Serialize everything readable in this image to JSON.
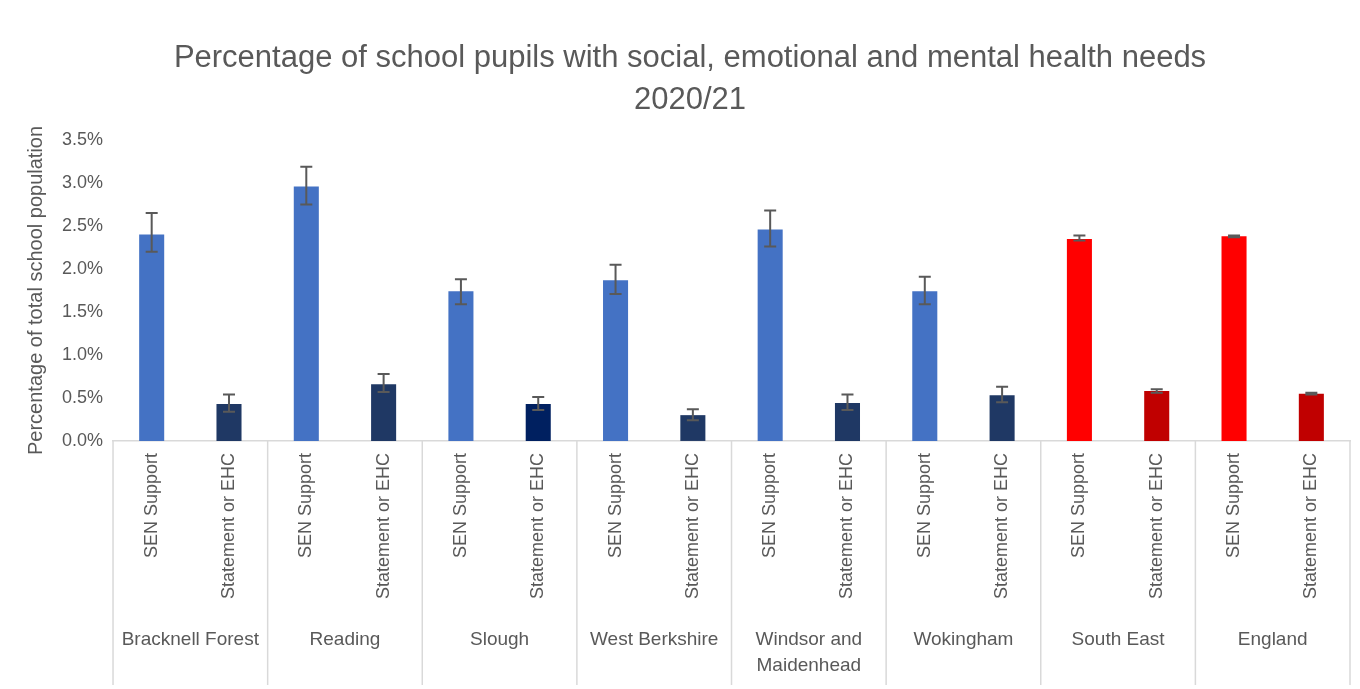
{
  "chart_data": {
    "type": "bar",
    "title": "Percentage of school pupils with social, emotional and mental health needs 2020/21",
    "ylabel": "Percentage of total school population",
    "categories": [
      "SEN Support",
      "Statement or EHC",
      "SEN Support",
      "Statement or EHC",
      "SEN Support",
      "Statement or EHC",
      "SEN Support",
      "Statement or EHC",
      "SEN Support",
      "Statement or EHC",
      "SEN Support",
      "Statement or EHC",
      "SEN Support",
      "Statement or EHC",
      "SEN Support",
      "Statement or EHC"
    ],
    "annotations": [
      "Bracknell Forest",
      "Reading",
      "Slough",
      "West Berkshire",
      "Windsor and Maidenhead",
      "Wokingham",
      "South East",
      "England"
    ],
    "values": [
      2.4,
      0.43,
      2.96,
      0.66,
      1.74,
      0.43,
      1.87,
      0.3,
      2.46,
      0.44,
      1.74,
      0.53,
      2.35,
      0.58,
      2.38,
      0.55
    ],
    "errors": [
      [
        2.2,
        2.65
      ],
      [
        0.34,
        0.54
      ],
      [
        2.75,
        3.19
      ],
      [
        0.57,
        0.78
      ],
      [
        1.59,
        1.88
      ],
      [
        0.36,
        0.51
      ],
      [
        1.71,
        2.05
      ],
      [
        0.24,
        0.37
      ],
      [
        2.26,
        2.68
      ],
      [
        0.36,
        0.54
      ],
      [
        1.59,
        1.91
      ],
      [
        0.45,
        0.63
      ],
      [
        2.33,
        2.39
      ],
      [
        0.56,
        0.6
      ],
      [
        2.37,
        2.39
      ],
      [
        0.54,
        0.56
      ]
    ],
    "colors": [
      "#4472c4",
      "#1f3864",
      "#4472c4",
      "#1f3864",
      "#4472c4",
      "#002060",
      "#4472c4",
      "#1f3864",
      "#4472c4",
      "#1f3864",
      "#4472c4",
      "#1f3864",
      "#ff0000",
      "#c00000",
      "#ff0000",
      "#c00000"
    ],
    "ylim": [
      0,
      3.5
    ],
    "yticks": [
      {
        "value": 0,
        "label": "0.0%"
      },
      {
        "value": 0.5,
        "label": "0.5%"
      },
      {
        "value": 1,
        "label": "1.0%"
      },
      {
        "value": 1.5,
        "label": "1.5%"
      },
      {
        "value": 2,
        "label": "2.0%"
      },
      {
        "value": 2.5,
        "label": "2.5%"
      },
      {
        "value": 3,
        "label": "3.0%"
      },
      {
        "value": 3.5,
        "label": "3.5%"
      }
    ],
    "grid": false,
    "legend": false
  }
}
